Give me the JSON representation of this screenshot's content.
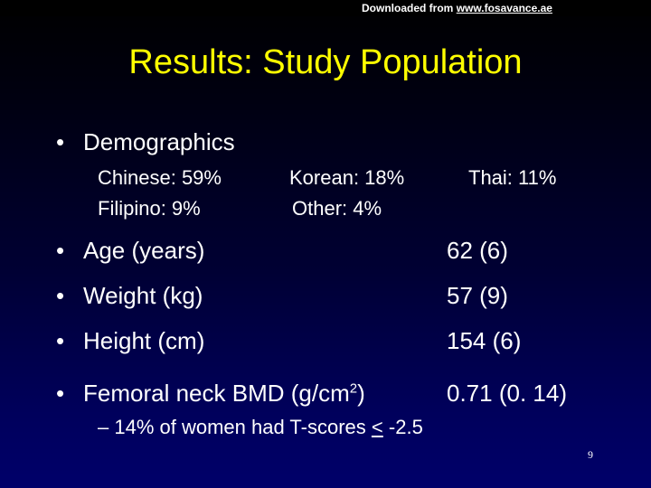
{
  "header": {
    "download_prefix": "Downloaded from",
    "download_site": "www.fosavance.ae"
  },
  "title": "Results: Study Population",
  "bullet_glyph": "•",
  "demographics": {
    "label": "Demographics",
    "rows": [
      [
        "Chinese: 59%",
        "Korean: 18%",
        "Thai: 11%"
      ],
      [
        "Filipino: 9%",
        "Other: 4%",
        ""
      ]
    ]
  },
  "stats": [
    {
      "label": "Age (years)",
      "value": "62 (6)"
    },
    {
      "label": "Weight (kg)",
      "value": "57 (9)"
    },
    {
      "label": "Height (cm)",
      "value": "154 (6)"
    }
  ],
  "bmd": {
    "label_prefix": "Femoral neck BMD (g/cm",
    "label_sup": "2",
    "label_suffix": ")",
    "value": "0.71 (0. 14)"
  },
  "sub_bullet": {
    "dash": "–",
    "text": "14% of women had T-scores",
    "op": "<",
    "threshold": "-2.5"
  },
  "page_number": "9"
}
